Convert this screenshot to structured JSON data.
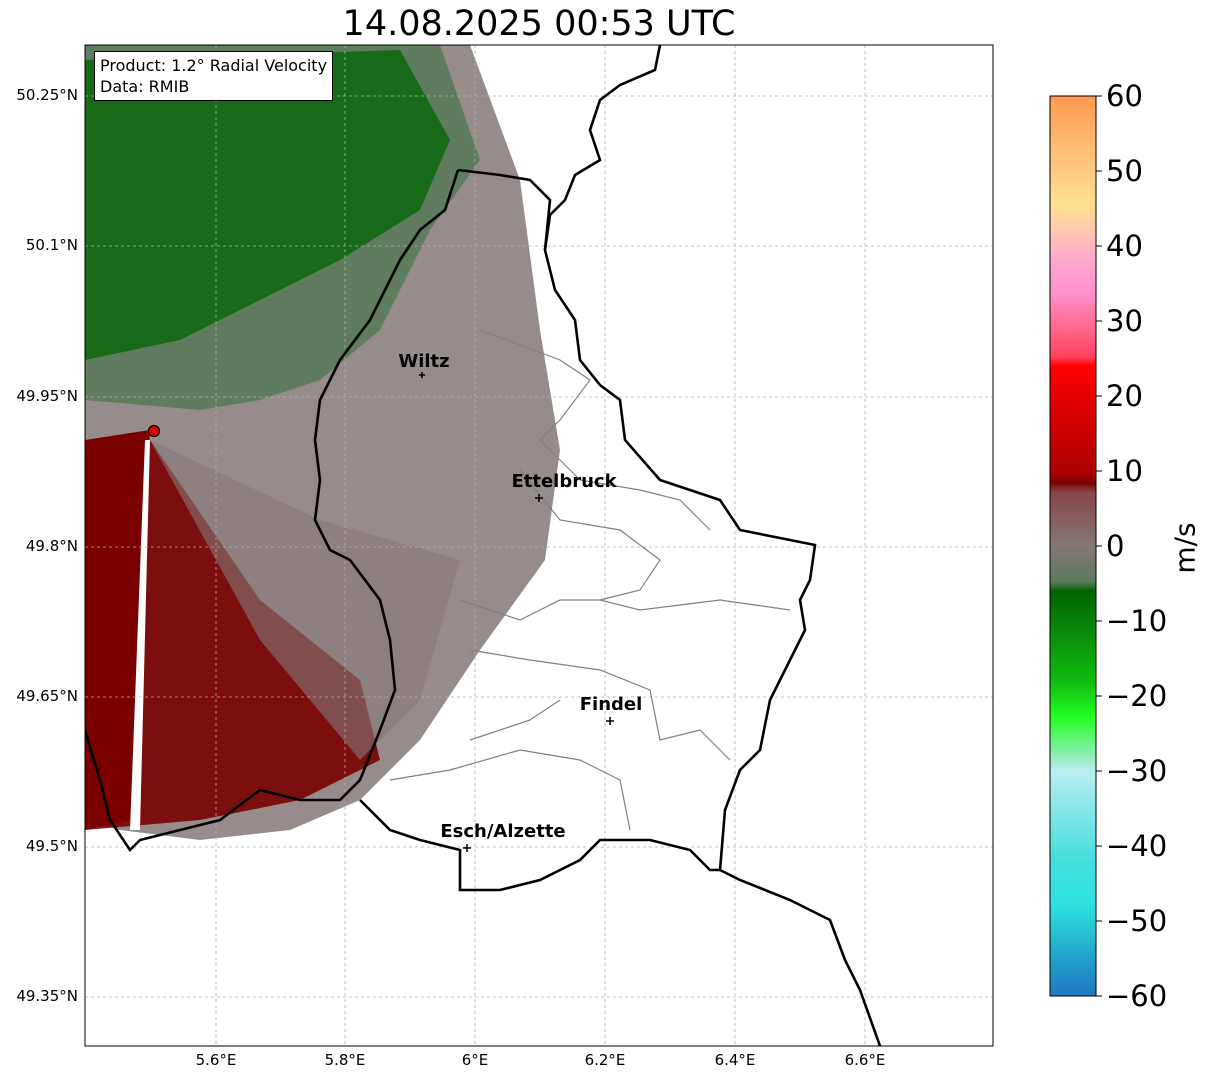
{
  "title": "14.08.2025 00:53 UTC",
  "info_box": {
    "product": "Product: 1.2° Radial Velocity",
    "source": "Data: RMIB"
  },
  "lat_ticks": [
    "50.25°N",
    "50.1°N",
    "49.95°N",
    "49.8°N",
    "49.65°N",
    "49.5°N",
    "49.35°N"
  ],
  "lon_ticks": [
    "5.6°E",
    "5.8°E",
    "6°E",
    "6.2°E",
    "6.4°E",
    "6.6°E"
  ],
  "cities": [
    {
      "name": "Wiltz"
    },
    {
      "name": "Ettelbruck"
    },
    {
      "name": "Findel"
    },
    {
      "name": "Esch/Alzette"
    }
  ],
  "colorbar": {
    "unit": "m/s",
    "ticks": [
      "60",
      "50",
      "40",
      "30",
      "20",
      "10",
      "0",
      "−10",
      "−20",
      "−30",
      "−40",
      "−50",
      "−60"
    ],
    "range": [
      -60,
      60
    ],
    "colors": {
      "neg_deep": "#1f78c1",
      "neg_cyan": "#2ee0e0",
      "neg_light": "#b8eef0",
      "neg_green_light": "#55ff66",
      "neg_green": "#11cc22",
      "neg_green_dark": "#006400",
      "zero_gray_green": "#5a7a5a",
      "zero_gray": "#857878",
      "pos_darkred": "#7a0000",
      "pos_red": "#ee0000",
      "pos_pink": "#ff5577",
      "pos_lightpink": "#ffaacc",
      "pos_peach": "#ffe090",
      "pos_orange": "#ff9a50"
    }
  },
  "radar_site": "red-marker"
}
